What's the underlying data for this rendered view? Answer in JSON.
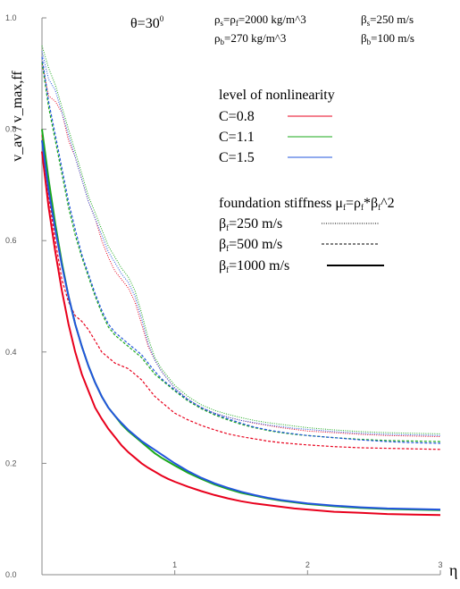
{
  "chart_data": {
    "type": "line",
    "title": "",
    "xlabel": "η",
    "ylabel": "v_av / v_max,ff",
    "xlim": [
      0,
      3
    ],
    "ylim": [
      0,
      1
    ],
    "grid": false,
    "x_ticks": [
      "1",
      "2",
      "3"
    ],
    "y_ticks": [
      "0.0",
      "0.2",
      "0.4",
      "0.6",
      "0.8",
      "1.0"
    ],
    "annotations": {
      "theta": "θ=30",
      "theta_sup": "0",
      "rho_s": "ρ",
      "rho_s_sub": "s",
      "rho_s_mid": "=ρ",
      "rho_f_sub": "f",
      "rho_s_val": "=2000 kg/m^3",
      "rho_b": "ρ",
      "rho_b_sub": "b",
      "rho_b_val": "=270 kg/m^3",
      "beta_s": "β",
      "beta_s_sub": "s",
      "beta_s_val": "=250 m/s",
      "beta_b": "β",
      "beta_b_sub": "b",
      "beta_b_val": "=100 m/s"
    },
    "legend_nonlinearity": {
      "title": "level of nonlinearity",
      "items": [
        {
          "label": "C=0.8",
          "color": "#e8001c"
        },
        {
          "label": "C=1.1",
          "color": "#1aa81a"
        },
        {
          "label": "C=1.5",
          "color": "#2255dd"
        }
      ]
    },
    "legend_stiffness": {
      "title_main": "foundation stiffness μ",
      "title_sub1": "f",
      "title_mid": "=ρ",
      "title_sub2": "f",
      "title_end": "*β",
      "title_sub3": "f",
      "title_tail": "^2",
      "items": [
        {
          "prefix": "β",
          "sub": "f",
          "value": "=250 m/s",
          "style": "dotted"
        },
        {
          "prefix": "β",
          "sub": "f",
          "value": "=500 m/s",
          "style": "dashed"
        },
        {
          "prefix": "β",
          "sub": "f",
          "value": "=1000 m/s",
          "style": "solid"
        }
      ]
    },
    "series": [
      {
        "C": "0.8",
        "stiffness": "250",
        "color": "#e8001c",
        "style": "dotted",
        "x": [
          0,
          0.05,
          0.1,
          0.15,
          0.2,
          0.25,
          0.3,
          0.35,
          0.4,
          0.45,
          0.5,
          0.55,
          0.6,
          0.65,
          0.7,
          0.75,
          0.8,
          0.85,
          0.9,
          0.95,
          1.0,
          1.1,
          1.2,
          1.3,
          1.4,
          1.5,
          1.6,
          1.7,
          1.8,
          1.9,
          2.0,
          2.2,
          2.4,
          2.6,
          2.8,
          3.0
        ],
        "y": [
          0.92,
          0.86,
          0.85,
          0.83,
          0.78,
          0.75,
          0.71,
          0.67,
          0.64,
          0.6,
          0.57,
          0.545,
          0.53,
          0.515,
          0.49,
          0.45,
          0.41,
          0.385,
          0.365,
          0.35,
          0.335,
          0.315,
          0.3,
          0.29,
          0.283,
          0.277,
          0.272,
          0.268,
          0.264,
          0.261,
          0.258,
          0.255,
          0.252,
          0.25,
          0.249,
          0.248
        ]
      },
      {
        "C": "1.1",
        "stiffness": "250",
        "color": "#1aa81a",
        "style": "dotted",
        "x": [
          0,
          0.05,
          0.1,
          0.15,
          0.2,
          0.25,
          0.3,
          0.35,
          0.4,
          0.45,
          0.5,
          0.55,
          0.6,
          0.65,
          0.7,
          0.75,
          0.8,
          0.85,
          0.9,
          0.95,
          1.0,
          1.1,
          1.2,
          1.3,
          1.4,
          1.5,
          1.6,
          1.7,
          1.8,
          1.9,
          2.0,
          2.2,
          2.4,
          2.6,
          2.8,
          3.0
        ],
        "y": [
          0.95,
          0.91,
          0.88,
          0.84,
          0.8,
          0.76,
          0.72,
          0.68,
          0.65,
          0.62,
          0.59,
          0.57,
          0.55,
          0.535,
          0.51,
          0.47,
          0.425,
          0.39,
          0.37,
          0.355,
          0.34,
          0.32,
          0.305,
          0.295,
          0.288,
          0.282,
          0.277,
          0.273,
          0.27,
          0.267,
          0.264,
          0.26,
          0.257,
          0.255,
          0.254,
          0.253
        ]
      },
      {
        "C": "1.5",
        "stiffness": "250",
        "color": "#2255dd",
        "style": "dotted",
        "x": [
          0,
          0.05,
          0.1,
          0.15,
          0.2,
          0.25,
          0.3,
          0.35,
          0.4,
          0.45,
          0.5,
          0.55,
          0.6,
          0.65,
          0.7,
          0.75,
          0.8,
          0.85,
          0.9,
          0.95,
          1.0,
          1.1,
          1.2,
          1.3,
          1.4,
          1.5,
          1.6,
          1.7,
          1.8,
          1.9,
          2.0,
          2.2,
          2.4,
          2.6,
          2.8,
          3.0
        ],
        "y": [
          0.94,
          0.89,
          0.87,
          0.83,
          0.79,
          0.75,
          0.71,
          0.67,
          0.64,
          0.61,
          0.58,
          0.56,
          0.54,
          0.525,
          0.5,
          0.46,
          0.415,
          0.385,
          0.365,
          0.35,
          0.335,
          0.315,
          0.3,
          0.29,
          0.283,
          0.277,
          0.273,
          0.269,
          0.266,
          0.263,
          0.261,
          0.257,
          0.254,
          0.252,
          0.251,
          0.25
        ]
      },
      {
        "C": "0.8",
        "stiffness": "500",
        "color": "#e8001c",
        "style": "dashed",
        "x": [
          0,
          0.05,
          0.1,
          0.15,
          0.2,
          0.25,
          0.3,
          0.35,
          0.4,
          0.45,
          0.5,
          0.55,
          0.6,
          0.65,
          0.7,
          0.75,
          0.8,
          0.85,
          0.9,
          0.95,
          1.0,
          1.1,
          1.2,
          1.3,
          1.4,
          1.5,
          1.6,
          1.7,
          1.8,
          1.9,
          2.0,
          2.2,
          2.4,
          2.6,
          2.8,
          3.0
        ],
        "y": [
          0.79,
          0.68,
          0.6,
          0.53,
          0.49,
          0.465,
          0.455,
          0.44,
          0.42,
          0.4,
          0.39,
          0.38,
          0.375,
          0.37,
          0.36,
          0.35,
          0.335,
          0.32,
          0.31,
          0.3,
          0.29,
          0.278,
          0.268,
          0.26,
          0.253,
          0.248,
          0.244,
          0.24,
          0.237,
          0.235,
          0.233,
          0.23,
          0.228,
          0.227,
          0.226,
          0.225
        ]
      },
      {
        "C": "1.1",
        "stiffness": "500",
        "color": "#1aa81a",
        "style": "dashed",
        "x": [
          0,
          0.05,
          0.1,
          0.15,
          0.2,
          0.25,
          0.3,
          0.35,
          0.4,
          0.45,
          0.5,
          0.55,
          0.6,
          0.65,
          0.7,
          0.75,
          0.8,
          0.85,
          0.9,
          0.95,
          1.0,
          1.1,
          1.2,
          1.3,
          1.4,
          1.5,
          1.6,
          1.7,
          1.8,
          1.9,
          2.0,
          2.2,
          2.4,
          2.6,
          2.8,
          3.0
        ],
        "y": [
          0.92,
          0.84,
          0.78,
          0.72,
          0.66,
          0.61,
          0.57,
          0.535,
          0.5,
          0.47,
          0.445,
          0.43,
          0.42,
          0.41,
          0.4,
          0.39,
          0.375,
          0.36,
          0.35,
          0.34,
          0.33,
          0.312,
          0.298,
          0.287,
          0.278,
          0.27,
          0.264,
          0.259,
          0.255,
          0.252,
          0.25,
          0.246,
          0.243,
          0.241,
          0.24,
          0.239
        ]
      },
      {
        "C": "1.5",
        "stiffness": "500",
        "color": "#2255dd",
        "style": "dashed",
        "x": [
          0,
          0.05,
          0.1,
          0.15,
          0.2,
          0.25,
          0.3,
          0.35,
          0.4,
          0.45,
          0.5,
          0.55,
          0.6,
          0.65,
          0.7,
          0.75,
          0.8,
          0.85,
          0.9,
          0.95,
          1.0,
          1.1,
          1.2,
          1.3,
          1.4,
          1.5,
          1.6,
          1.7,
          1.8,
          1.9,
          2.0,
          2.2,
          2.4,
          2.6,
          2.8,
          3.0
        ],
        "y": [
          0.93,
          0.85,
          0.79,
          0.73,
          0.67,
          0.62,
          0.575,
          0.54,
          0.505,
          0.475,
          0.45,
          0.435,
          0.425,
          0.415,
          0.405,
          0.395,
          0.38,
          0.365,
          0.352,
          0.342,
          0.332,
          0.314,
          0.3,
          0.289,
          0.28,
          0.272,
          0.265,
          0.26,
          0.256,
          0.253,
          0.25,
          0.246,
          0.242,
          0.239,
          0.237,
          0.236
        ]
      },
      {
        "C": "0.8",
        "stiffness": "1000",
        "color": "#e8001c",
        "style": "solid",
        "x": [
          0,
          0.05,
          0.1,
          0.15,
          0.2,
          0.25,
          0.3,
          0.35,
          0.4,
          0.45,
          0.5,
          0.55,
          0.6,
          0.65,
          0.7,
          0.75,
          0.8,
          0.85,
          0.9,
          0.95,
          1.0,
          1.1,
          1.2,
          1.3,
          1.4,
          1.5,
          1.6,
          1.7,
          1.8,
          1.9,
          2.0,
          2.2,
          2.4,
          2.6,
          2.8,
          3.0
        ],
        "y": [
          0.76,
          0.66,
          0.58,
          0.51,
          0.45,
          0.4,
          0.36,
          0.33,
          0.3,
          0.28,
          0.262,
          0.247,
          0.232,
          0.22,
          0.21,
          0.2,
          0.192,
          0.185,
          0.178,
          0.172,
          0.167,
          0.158,
          0.15,
          0.143,
          0.137,
          0.132,
          0.128,
          0.125,
          0.122,
          0.119,
          0.117,
          0.113,
          0.111,
          0.109,
          0.108,
          0.107
        ]
      },
      {
        "C": "1.1",
        "stiffness": "1000",
        "color": "#1aa81a",
        "style": "solid",
        "x": [
          0,
          0.05,
          0.1,
          0.15,
          0.2,
          0.25,
          0.3,
          0.35,
          0.4,
          0.45,
          0.5,
          0.55,
          0.6,
          0.65,
          0.7,
          0.75,
          0.8,
          0.85,
          0.9,
          0.95,
          1.0,
          1.1,
          1.2,
          1.3,
          1.4,
          1.5,
          1.6,
          1.7,
          1.8,
          1.9,
          2.0,
          2.2,
          2.4,
          2.6,
          2.8,
          3.0
        ],
        "y": [
          0.8,
          0.71,
          0.63,
          0.56,
          0.5,
          0.45,
          0.41,
          0.375,
          0.345,
          0.32,
          0.3,
          0.285,
          0.27,
          0.258,
          0.248,
          0.238,
          0.228,
          0.218,
          0.21,
          0.203,
          0.196,
          0.183,
          0.172,
          0.162,
          0.154,
          0.147,
          0.142,
          0.137,
          0.133,
          0.13,
          0.127,
          0.123,
          0.12,
          0.118,
          0.117,
          0.116
        ]
      },
      {
        "C": "1.5",
        "stiffness": "1000",
        "color": "#2255dd",
        "style": "solid",
        "x": [
          0,
          0.05,
          0.1,
          0.15,
          0.2,
          0.25,
          0.3,
          0.35,
          0.4,
          0.45,
          0.5,
          0.55,
          0.6,
          0.65,
          0.7,
          0.75,
          0.8,
          0.85,
          0.9,
          0.95,
          1.0,
          1.1,
          1.2,
          1.3,
          1.4,
          1.5,
          1.6,
          1.7,
          1.8,
          1.9,
          2.0,
          2.2,
          2.4,
          2.6,
          2.8,
          3.0
        ],
        "y": [
          0.78,
          0.69,
          0.62,
          0.555,
          0.5,
          0.45,
          0.41,
          0.375,
          0.345,
          0.32,
          0.3,
          0.285,
          0.272,
          0.26,
          0.25,
          0.24,
          0.232,
          0.224,
          0.216,
          0.208,
          0.2,
          0.186,
          0.174,
          0.164,
          0.156,
          0.149,
          0.143,
          0.138,
          0.134,
          0.131,
          0.128,
          0.124,
          0.121,
          0.119,
          0.118,
          0.117
        ]
      }
    ]
  }
}
